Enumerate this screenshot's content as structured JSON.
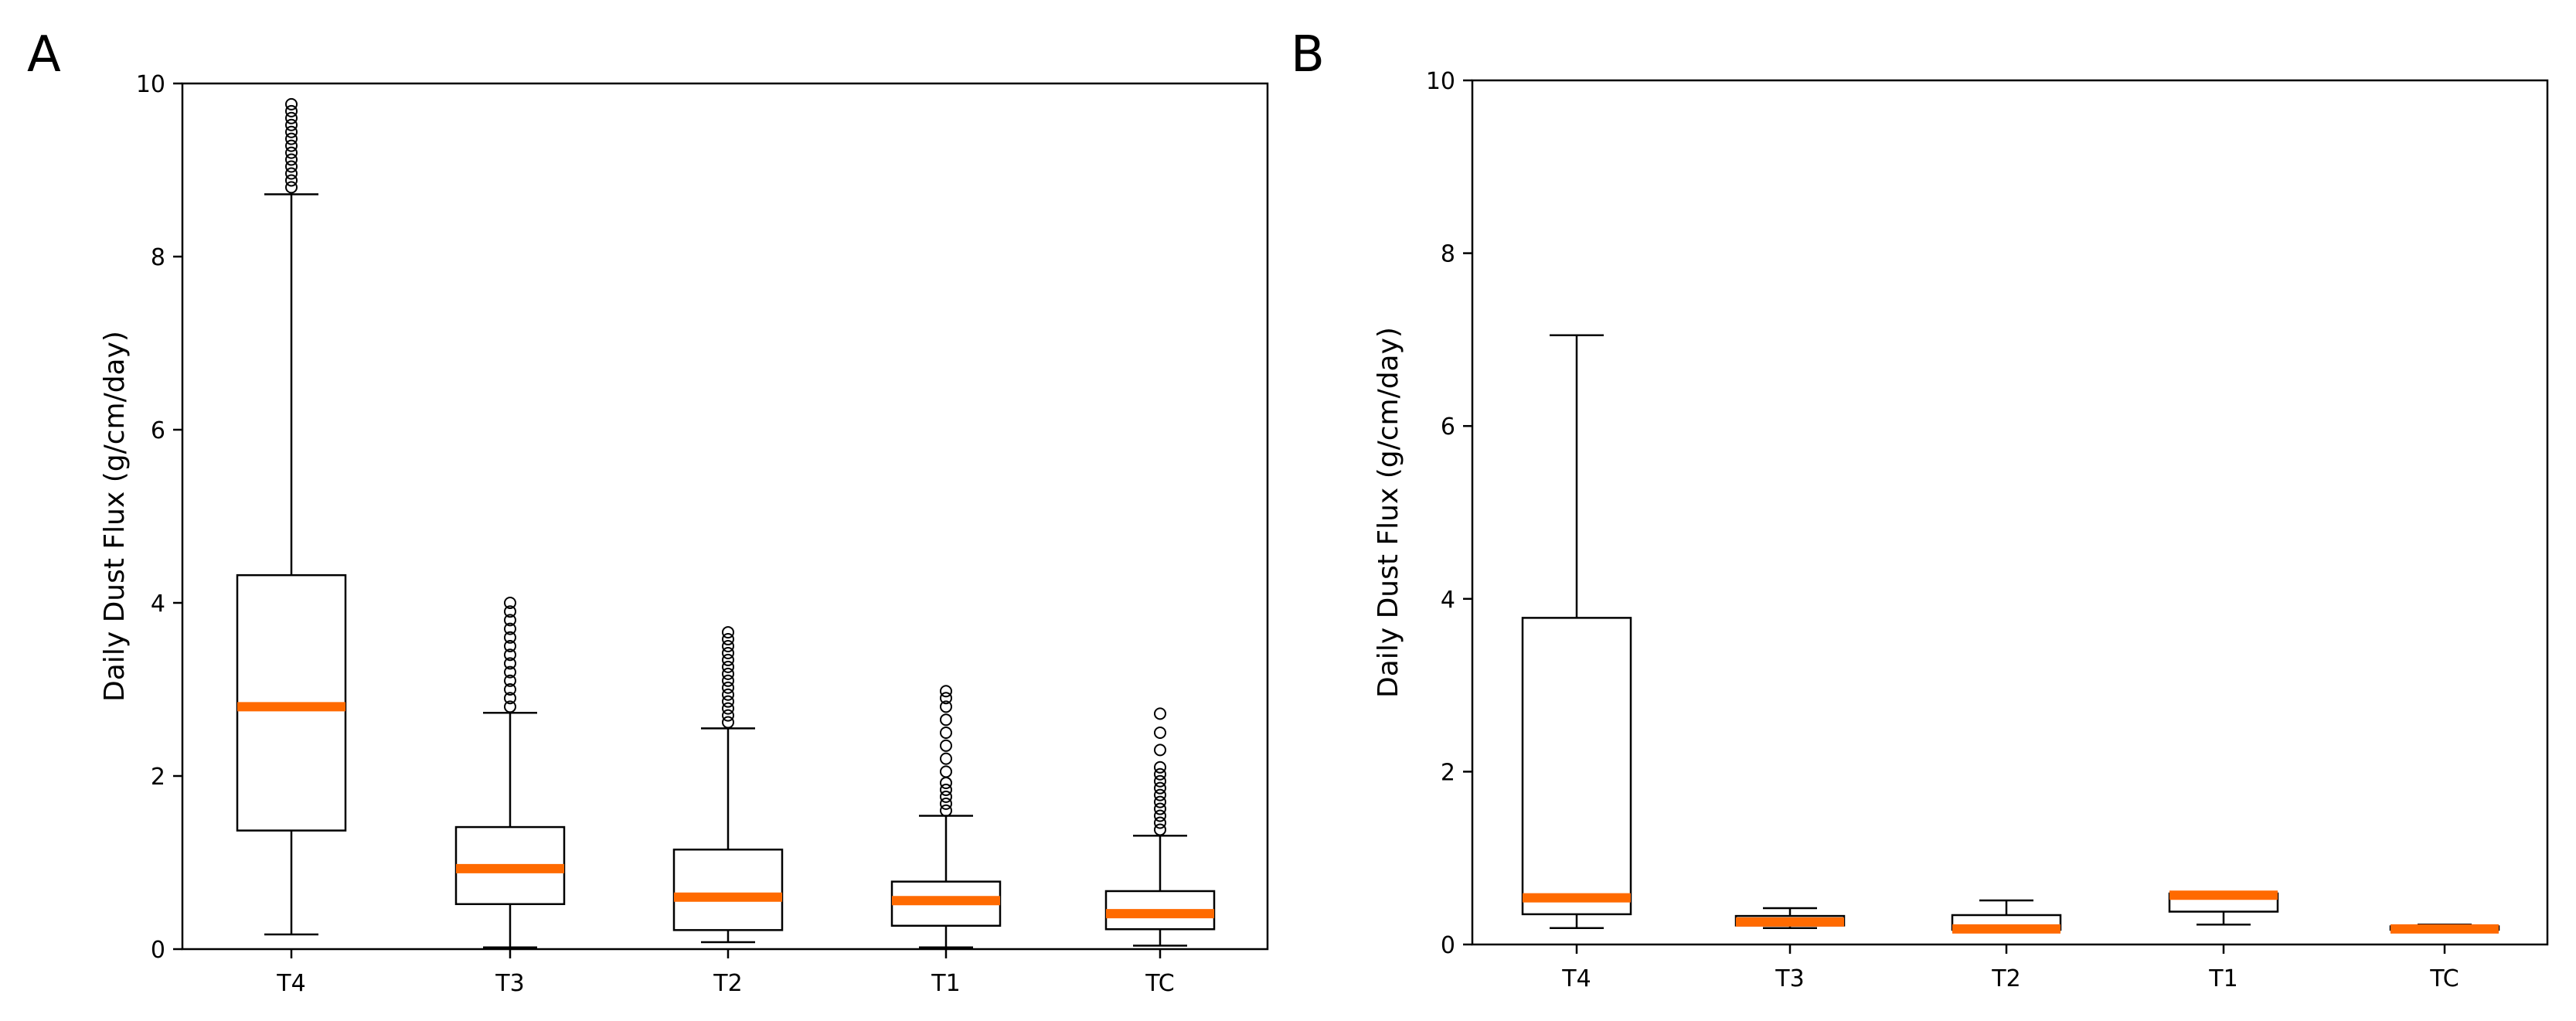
{
  "chart_data": [
    {
      "type": "box",
      "panel": "A",
      "title": "",
      "xlabel": "",
      "ylabel": "Daily Dust Flux (g/cm/day)",
      "ylim": [
        0,
        10
      ],
      "yticks": [
        0,
        2,
        4,
        6,
        8,
        10
      ],
      "categories": [
        "T4",
        "T3",
        "T2",
        "T1",
        "TC"
      ],
      "boxes": [
        {
          "label": "T4",
          "whislo": 0.17,
          "q1": 1.37,
          "med": 2.8,
          "q3": 4.32,
          "whishi": 8.72,
          "fliers": [
            8.8,
            8.88,
            8.96,
            9.04,
            9.12,
            9.2,
            9.28,
            9.36,
            9.44,
            9.52,
            9.6,
            9.68,
            9.76
          ]
        },
        {
          "label": "T3",
          "whislo": 0.02,
          "q1": 0.52,
          "med": 0.93,
          "q3": 1.41,
          "whishi": 2.73,
          "fliers": [
            2.8,
            2.9,
            3.0,
            3.1,
            3.2,
            3.3,
            3.4,
            3.5,
            3.6,
            3.7,
            3.8,
            3.9,
            4.0
          ]
        },
        {
          "label": "T2",
          "whislo": 0.08,
          "q1": 0.22,
          "med": 0.6,
          "q3": 1.15,
          "whishi": 2.55,
          "fliers": [
            2.62,
            2.7,
            2.78,
            2.86,
            2.94,
            3.02,
            3.1,
            3.18,
            3.26,
            3.34,
            3.42,
            3.5,
            3.58,
            3.66
          ]
        },
        {
          "label": "T1",
          "whislo": 0.02,
          "q1": 0.27,
          "med": 0.56,
          "q3": 0.78,
          "whishi": 1.54,
          "fliers": [
            1.6,
            1.68,
            1.76,
            1.84,
            1.92,
            2.05,
            2.2,
            2.35,
            2.5,
            2.65,
            2.8,
            2.9,
            2.98
          ]
        },
        {
          "label": "TC",
          "whislo": 0.04,
          "q1": 0.23,
          "med": 0.41,
          "q3": 0.67,
          "whishi": 1.31,
          "fliers": [
            1.38,
            1.46,
            1.54,
            1.62,
            1.7,
            1.78,
            1.86,
            1.94,
            2.02,
            2.1,
            2.3,
            2.5,
            2.72
          ]
        }
      ]
    },
    {
      "type": "box",
      "panel": "B",
      "title": "",
      "xlabel": "",
      "ylabel": "Daily Dust Flux (g/cm/day)",
      "ylim": [
        0,
        10
      ],
      "yticks": [
        0,
        2,
        4,
        6,
        8,
        10
      ],
      "categories": [
        "T4",
        "T3",
        "T2",
        "T1",
        "TC"
      ],
      "boxes": [
        {
          "label": "T4",
          "whislo": 0.19,
          "q1": 0.35,
          "med": 0.54,
          "q3": 3.78,
          "whishi": 7.05,
          "fliers": []
        },
        {
          "label": "T3",
          "whislo": 0.19,
          "q1": 0.22,
          "med": 0.26,
          "q3": 0.33,
          "whishi": 0.42,
          "fliers": []
        },
        {
          "label": "T2",
          "whislo": 0.16,
          "q1": 0.17,
          "med": 0.18,
          "q3": 0.34,
          "whishi": 0.51,
          "fliers": []
        },
        {
          "label": "T1",
          "whislo": 0.23,
          "q1": 0.38,
          "med": 0.57,
          "q3": 0.59,
          "whishi": 0.59,
          "fliers": []
        },
        {
          "label": "TC",
          "whislo": 0.16,
          "q1": 0.17,
          "med": 0.18,
          "q3": 0.21,
          "whishi": 0.23,
          "fliers": []
        }
      ]
    }
  ]
}
